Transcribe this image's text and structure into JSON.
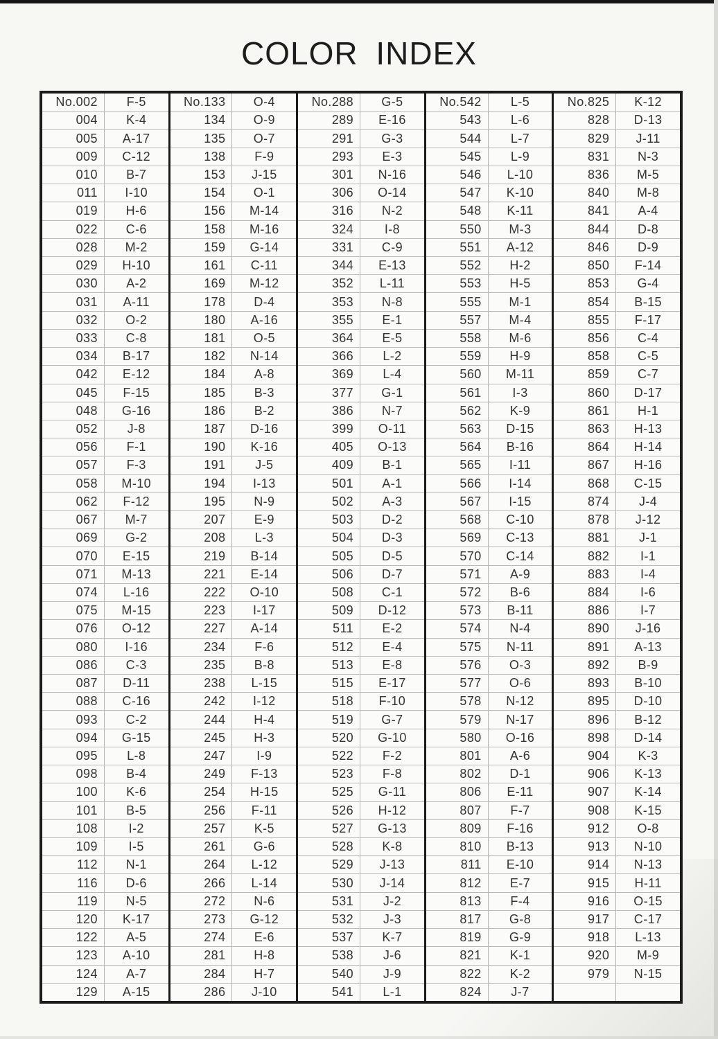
{
  "page": {
    "title": "COLOR INDEX"
  },
  "colors": {
    "paper": "#f7f7f4",
    "table_border": "#1b1b1b",
    "row_line": "#b9b9b5",
    "text": "#333331",
    "scan_edge_top": "#161616",
    "scan_edge_right": "#dadad6"
  },
  "table": {
    "columns": [
      {
        "rows": [
          [
            "No.002",
            "F-5"
          ],
          [
            "004",
            "K-4"
          ],
          [
            "005",
            "A-17"
          ],
          [
            "009",
            "C-12"
          ],
          [
            "010",
            "B-7"
          ],
          [
            "011",
            "I-10"
          ],
          [
            "019",
            "H-6"
          ],
          [
            "022",
            "C-6"
          ],
          [
            "028",
            "M-2"
          ],
          [
            "029",
            "H-10"
          ],
          [
            "030",
            "A-2"
          ],
          [
            "031",
            "A-11"
          ],
          [
            "032",
            "O-2"
          ],
          [
            "033",
            "C-8"
          ],
          [
            "034",
            "B-17"
          ],
          [
            "042",
            "E-12"
          ],
          [
            "045",
            "F-15"
          ],
          [
            "048",
            "G-16"
          ],
          [
            "052",
            "J-8"
          ],
          [
            "056",
            "F-1"
          ],
          [
            "057",
            "F-3"
          ],
          [
            "058",
            "M-10"
          ],
          [
            "062",
            "F-12"
          ],
          [
            "067",
            "M-7"
          ],
          [
            "069",
            "G-2"
          ],
          [
            "070",
            "E-15"
          ],
          [
            "071",
            "M-13"
          ],
          [
            "074",
            "L-16"
          ],
          [
            "075",
            "M-15"
          ],
          [
            "076",
            "O-12"
          ],
          [
            "080",
            "I-16"
          ],
          [
            "086",
            "C-3"
          ],
          [
            "087",
            "D-11"
          ],
          [
            "088",
            "C-16"
          ],
          [
            "093",
            "C-2"
          ],
          [
            "094",
            "G-15"
          ],
          [
            "095",
            "L-8"
          ],
          [
            "098",
            "B-4"
          ],
          [
            "100",
            "K-6"
          ],
          [
            "101",
            "B-5"
          ],
          [
            "108",
            "I-2"
          ],
          [
            "109",
            "I-5"
          ],
          [
            "112",
            "N-1"
          ],
          [
            "116",
            "D-6"
          ],
          [
            "119",
            "N-5"
          ],
          [
            "120",
            "K-17"
          ],
          [
            "122",
            "A-5"
          ],
          [
            "123",
            "A-10"
          ],
          [
            "124",
            "A-7"
          ],
          [
            "129",
            "A-15"
          ]
        ]
      },
      {
        "rows": [
          [
            "No.133",
            "O-4"
          ],
          [
            "134",
            "O-9"
          ],
          [
            "135",
            "O-7"
          ],
          [
            "138",
            "F-9"
          ],
          [
            "153",
            "J-15"
          ],
          [
            "154",
            "O-1"
          ],
          [
            "156",
            "M-14"
          ],
          [
            "158",
            "M-16"
          ],
          [
            "159",
            "G-14"
          ],
          [
            "161",
            "C-11"
          ],
          [
            "169",
            "M-12"
          ],
          [
            "178",
            "D-4"
          ],
          [
            "180",
            "A-16"
          ],
          [
            "181",
            "O-5"
          ],
          [
            "182",
            "N-14"
          ],
          [
            "184",
            "A-8"
          ],
          [
            "185",
            "B-3"
          ],
          [
            "186",
            "B-2"
          ],
          [
            "187",
            "D-16"
          ],
          [
            "190",
            "K-16"
          ],
          [
            "191",
            "J-5"
          ],
          [
            "194",
            "I-13"
          ],
          [
            "195",
            "N-9"
          ],
          [
            "207",
            "E-9"
          ],
          [
            "208",
            "L-3"
          ],
          [
            "219",
            "B-14"
          ],
          [
            "221",
            "E-14"
          ],
          [
            "222",
            "O-10"
          ],
          [
            "223",
            "I-17"
          ],
          [
            "227",
            "A-14"
          ],
          [
            "234",
            "F-6"
          ],
          [
            "235",
            "B-8"
          ],
          [
            "238",
            "L-15"
          ],
          [
            "242",
            "I-12"
          ],
          [
            "244",
            "H-4"
          ],
          [
            "245",
            "H-3"
          ],
          [
            "247",
            "I-9"
          ],
          [
            "249",
            "F-13"
          ],
          [
            "254",
            "H-15"
          ],
          [
            "256",
            "F-11"
          ],
          [
            "257",
            "K-5"
          ],
          [
            "261",
            "G-6"
          ],
          [
            "264",
            "L-12"
          ],
          [
            "266",
            "L-14"
          ],
          [
            "272",
            "N-6"
          ],
          [
            "273",
            "G-12"
          ],
          [
            "274",
            "E-6"
          ],
          [
            "281",
            "H-8"
          ],
          [
            "284",
            "H-7"
          ],
          [
            "286",
            "J-10"
          ]
        ]
      },
      {
        "rows": [
          [
            "No.288",
            "G-5"
          ],
          [
            "289",
            "E-16"
          ],
          [
            "291",
            "G-3"
          ],
          [
            "293",
            "E-3"
          ],
          [
            "301",
            "N-16"
          ],
          [
            "306",
            "O-14"
          ],
          [
            "316",
            "N-2"
          ],
          [
            "324",
            "I-8"
          ],
          [
            "331",
            "C-9"
          ],
          [
            "344",
            "E-13"
          ],
          [
            "352",
            "L-11"
          ],
          [
            "353",
            "N-8"
          ],
          [
            "355",
            "E-1"
          ],
          [
            "364",
            "E-5"
          ],
          [
            "366",
            "L-2"
          ],
          [
            "369",
            "L-4"
          ],
          [
            "377",
            "G-1"
          ],
          [
            "386",
            "N-7"
          ],
          [
            "399",
            "O-11"
          ],
          [
            "405",
            "O-13"
          ],
          [
            "409",
            "B-1"
          ],
          [
            "501",
            "A-1"
          ],
          [
            "502",
            "A-3"
          ],
          [
            "503",
            "D-2"
          ],
          [
            "504",
            "D-3"
          ],
          [
            "505",
            "D-5"
          ],
          [
            "506",
            "D-7"
          ],
          [
            "508",
            "C-1"
          ],
          [
            "509",
            "D-12"
          ],
          [
            "511",
            "E-2"
          ],
          [
            "512",
            "E-4"
          ],
          [
            "513",
            "E-8"
          ],
          [
            "515",
            "E-17"
          ],
          [
            "518",
            "F-10"
          ],
          [
            "519",
            "G-7"
          ],
          [
            "520",
            "G-10"
          ],
          [
            "522",
            "F-2"
          ],
          [
            "523",
            "F-8"
          ],
          [
            "525",
            "G-11"
          ],
          [
            "526",
            "H-12"
          ],
          [
            "527",
            "G-13"
          ],
          [
            "528",
            "K-8"
          ],
          [
            "529",
            "J-13"
          ],
          [
            "530",
            "J-14"
          ],
          [
            "531",
            "J-2"
          ],
          [
            "532",
            "J-3"
          ],
          [
            "537",
            "K-7"
          ],
          [
            "538",
            "J-6"
          ],
          [
            "540",
            "J-9"
          ],
          [
            "541",
            "L-1"
          ]
        ]
      },
      {
        "rows": [
          [
            "No.542",
            "L-5"
          ],
          [
            "543",
            "L-6"
          ],
          [
            "544",
            "L-7"
          ],
          [
            "545",
            "L-9"
          ],
          [
            "546",
            "L-10"
          ],
          [
            "547",
            "K-10"
          ],
          [
            "548",
            "K-11"
          ],
          [
            "550",
            "M-3"
          ],
          [
            "551",
            "A-12"
          ],
          [
            "552",
            "H-2"
          ],
          [
            "553",
            "H-5"
          ],
          [
            "555",
            "M-1"
          ],
          [
            "557",
            "M-4"
          ],
          [
            "558",
            "M-6"
          ],
          [
            "559",
            "H-9"
          ],
          [
            "560",
            "M-11"
          ],
          [
            "561",
            "I-3"
          ],
          [
            "562",
            "K-9"
          ],
          [
            "563",
            "D-15"
          ],
          [
            "564",
            "B-16"
          ],
          [
            "565",
            "I-11"
          ],
          [
            "566",
            "I-14"
          ],
          [
            "567",
            "I-15"
          ],
          [
            "568",
            "C-10"
          ],
          [
            "569",
            "C-13"
          ],
          [
            "570",
            "C-14"
          ],
          [
            "571",
            "A-9"
          ],
          [
            "572",
            "B-6"
          ],
          [
            "573",
            "B-11"
          ],
          [
            "574",
            "N-4"
          ],
          [
            "575",
            "N-11"
          ],
          [
            "576",
            "O-3"
          ],
          [
            "577",
            "O-6"
          ],
          [
            "578",
            "N-12"
          ],
          [
            "579",
            "N-17"
          ],
          [
            "580",
            "O-16"
          ],
          [
            "801",
            "A-6"
          ],
          [
            "802",
            "D-1"
          ],
          [
            "806",
            "E-11"
          ],
          [
            "807",
            "F-7"
          ],
          [
            "809",
            "F-16"
          ],
          [
            "810",
            "B-13"
          ],
          [
            "811",
            "E-10"
          ],
          [
            "812",
            "E-7"
          ],
          [
            "813",
            "F-4"
          ],
          [
            "817",
            "G-8"
          ],
          [
            "819",
            "G-9"
          ],
          [
            "821",
            "K-1"
          ],
          [
            "822",
            "K-2"
          ],
          [
            "824",
            "J-7"
          ]
        ]
      },
      {
        "rows": [
          [
            "No.825",
            "K-12"
          ],
          [
            "828",
            "D-13"
          ],
          [
            "829",
            "J-11"
          ],
          [
            "831",
            "N-3"
          ],
          [
            "836",
            "M-5"
          ],
          [
            "840",
            "M-8"
          ],
          [
            "841",
            "A-4"
          ],
          [
            "844",
            "D-8"
          ],
          [
            "846",
            "D-9"
          ],
          [
            "850",
            "F-14"
          ],
          [
            "853",
            "G-4"
          ],
          [
            "854",
            "B-15"
          ],
          [
            "855",
            "F-17"
          ],
          [
            "856",
            "C-4"
          ],
          [
            "858",
            "C-5"
          ],
          [
            "859",
            "C-7"
          ],
          [
            "860",
            "D-17"
          ],
          [
            "861",
            "H-1"
          ],
          [
            "863",
            "H-13"
          ],
          [
            "864",
            "H-14"
          ],
          [
            "867",
            "H-16"
          ],
          [
            "868",
            "C-15"
          ],
          [
            "874",
            "J-4"
          ],
          [
            "878",
            "J-12"
          ],
          [
            "881",
            "J-1"
          ],
          [
            "882",
            "I-1"
          ],
          [
            "883",
            "I-4"
          ],
          [
            "884",
            "I-6"
          ],
          [
            "886",
            "I-7"
          ],
          [
            "890",
            "J-16"
          ],
          [
            "891",
            "A-13"
          ],
          [
            "892",
            "B-9"
          ],
          [
            "893",
            "B-10"
          ],
          [
            "895",
            "D-10"
          ],
          [
            "896",
            "B-12"
          ],
          [
            "898",
            "D-14"
          ],
          [
            "904",
            "K-3"
          ],
          [
            "906",
            "K-13"
          ],
          [
            "907",
            "K-14"
          ],
          [
            "908",
            "K-15"
          ],
          [
            "912",
            "O-8"
          ],
          [
            "913",
            "N-10"
          ],
          [
            "914",
            "N-13"
          ],
          [
            "915",
            "H-11"
          ],
          [
            "916",
            "O-15"
          ],
          [
            "917",
            "C-17"
          ],
          [
            "918",
            "L-13"
          ],
          [
            "920",
            "M-9"
          ],
          [
            "979",
            "N-15"
          ],
          [
            "",
            ""
          ]
        ]
      }
    ]
  }
}
